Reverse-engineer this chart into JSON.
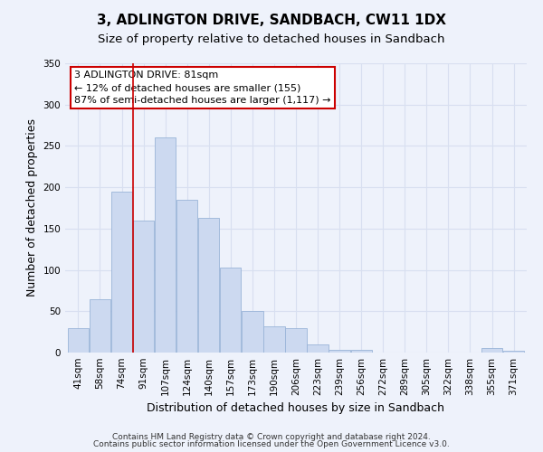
{
  "title": "3, ADLINGTON DRIVE, SANDBACH, CW11 1DX",
  "subtitle": "Size of property relative to detached houses in Sandbach",
  "xlabel": "Distribution of detached houses by size in Sandbach",
  "ylabel": "Number of detached properties",
  "bar_labels": [
    "41sqm",
    "58sqm",
    "74sqm",
    "91sqm",
    "107sqm",
    "124sqm",
    "140sqm",
    "157sqm",
    "173sqm",
    "190sqm",
    "206sqm",
    "223sqm",
    "239sqm",
    "256sqm",
    "272sqm",
    "289sqm",
    "305sqm",
    "322sqm",
    "338sqm",
    "355sqm",
    "371sqm"
  ],
  "bar_values": [
    30,
    65,
    195,
    160,
    260,
    185,
    163,
    103,
    50,
    32,
    30,
    10,
    3,
    3,
    0,
    0,
    0,
    0,
    0,
    5,
    2
  ],
  "bar_color": "#ccd9f0",
  "bar_edge_color": "#9ab4d8",
  "ylim": [
    0,
    350
  ],
  "yticks": [
    0,
    50,
    100,
    150,
    200,
    250,
    300,
    350
  ],
  "vline_x": 2.5,
  "vline_color": "#cc0000",
  "annotation_title": "3 ADLINGTON DRIVE: 81sqm",
  "annotation_line1": "← 12% of detached houses are smaller (155)",
  "annotation_line2": "87% of semi-detached houses are larger (1,117) →",
  "annotation_box_color": "#ffffff",
  "annotation_box_edge": "#cc0000",
  "footer1": "Contains HM Land Registry data © Crown copyright and database right 2024.",
  "footer2": "Contains public sector information licensed under the Open Government Licence v3.0.",
  "bg_color": "#eef2fb",
  "grid_color": "#d8dff0",
  "title_fontsize": 11,
  "subtitle_fontsize": 9.5,
  "axis_label_fontsize": 9,
  "tick_fontsize": 7.5,
  "annotation_fontsize": 8,
  "footer_fontsize": 6.5
}
